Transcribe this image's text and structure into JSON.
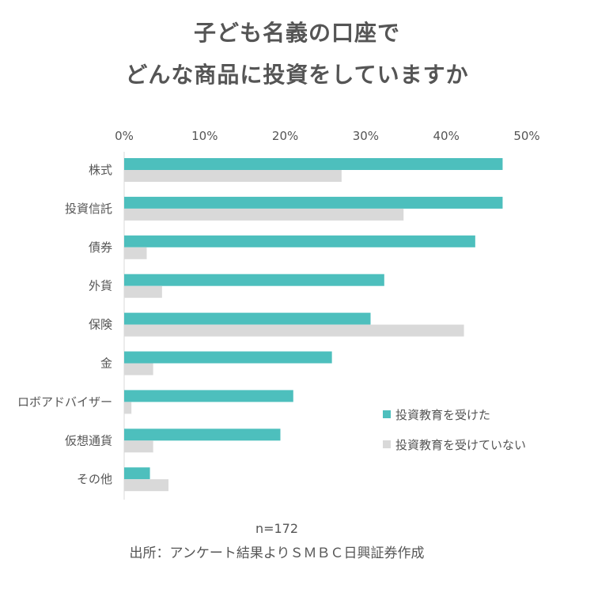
{
  "chart_data": {
    "type": "bar",
    "orientation": "horizontal",
    "title_lines": [
      "子ども名義の口座で",
      "どんな商品に投資をしていますか"
    ],
    "categories": [
      "株式",
      "投資信託",
      "債券",
      "外貨",
      "保険",
      "金",
      "ロボアドバイザー",
      "仮想通貨",
      "その他"
    ],
    "series": [
      {
        "name": "投資教育を受けた",
        "color": "#4DBFBD",
        "values": [
          47.0,
          47.0,
          43.6,
          32.3,
          30.6,
          25.8,
          21.0,
          19.4,
          3.2
        ]
      },
      {
        "name": "投資教育を受けていない",
        "color": "#D9D9D9",
        "values": [
          27.0,
          34.7,
          2.8,
          4.7,
          42.2,
          3.6,
          0.9,
          3.6,
          5.5
        ]
      }
    ],
    "xlim": [
      0,
      50
    ],
    "xticks": [
      "0%",
      "10%",
      "20%",
      "30%",
      "40%",
      "50%"
    ],
    "legend_position": "right-lower",
    "grid": false,
    "sample_note": "n=172",
    "source": "出所：アンケート結果よりＳＭＢＣ日興証券作成"
  }
}
